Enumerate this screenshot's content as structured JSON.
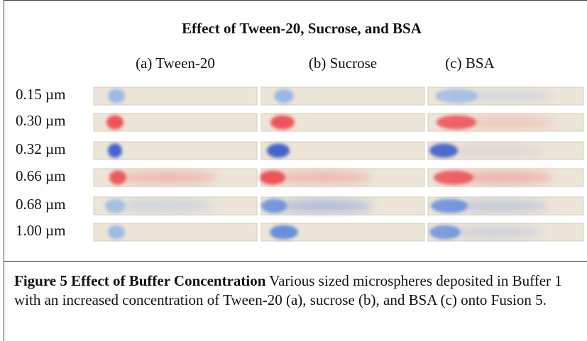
{
  "title": "Effect of Tween-20, Sucrose, and BSA",
  "columns": [
    "(a) Tween-20",
    "(b) Sucrose",
    "(c) BSA"
  ],
  "rows": [
    "0.15 µm",
    "0.30 µm",
    "0.32 µm",
    "0.66 µm",
    "0.68 µm",
    "1.00 µm"
  ],
  "caption": {
    "label": "Figure 5 Effect of Buffer Concentration",
    "text": " Various sized microspheres deposited in Buffer 1 with an increased concentration of  Tween-20 (a), sucrose (b), and BSA (c) onto Fusion 5."
  }
}
